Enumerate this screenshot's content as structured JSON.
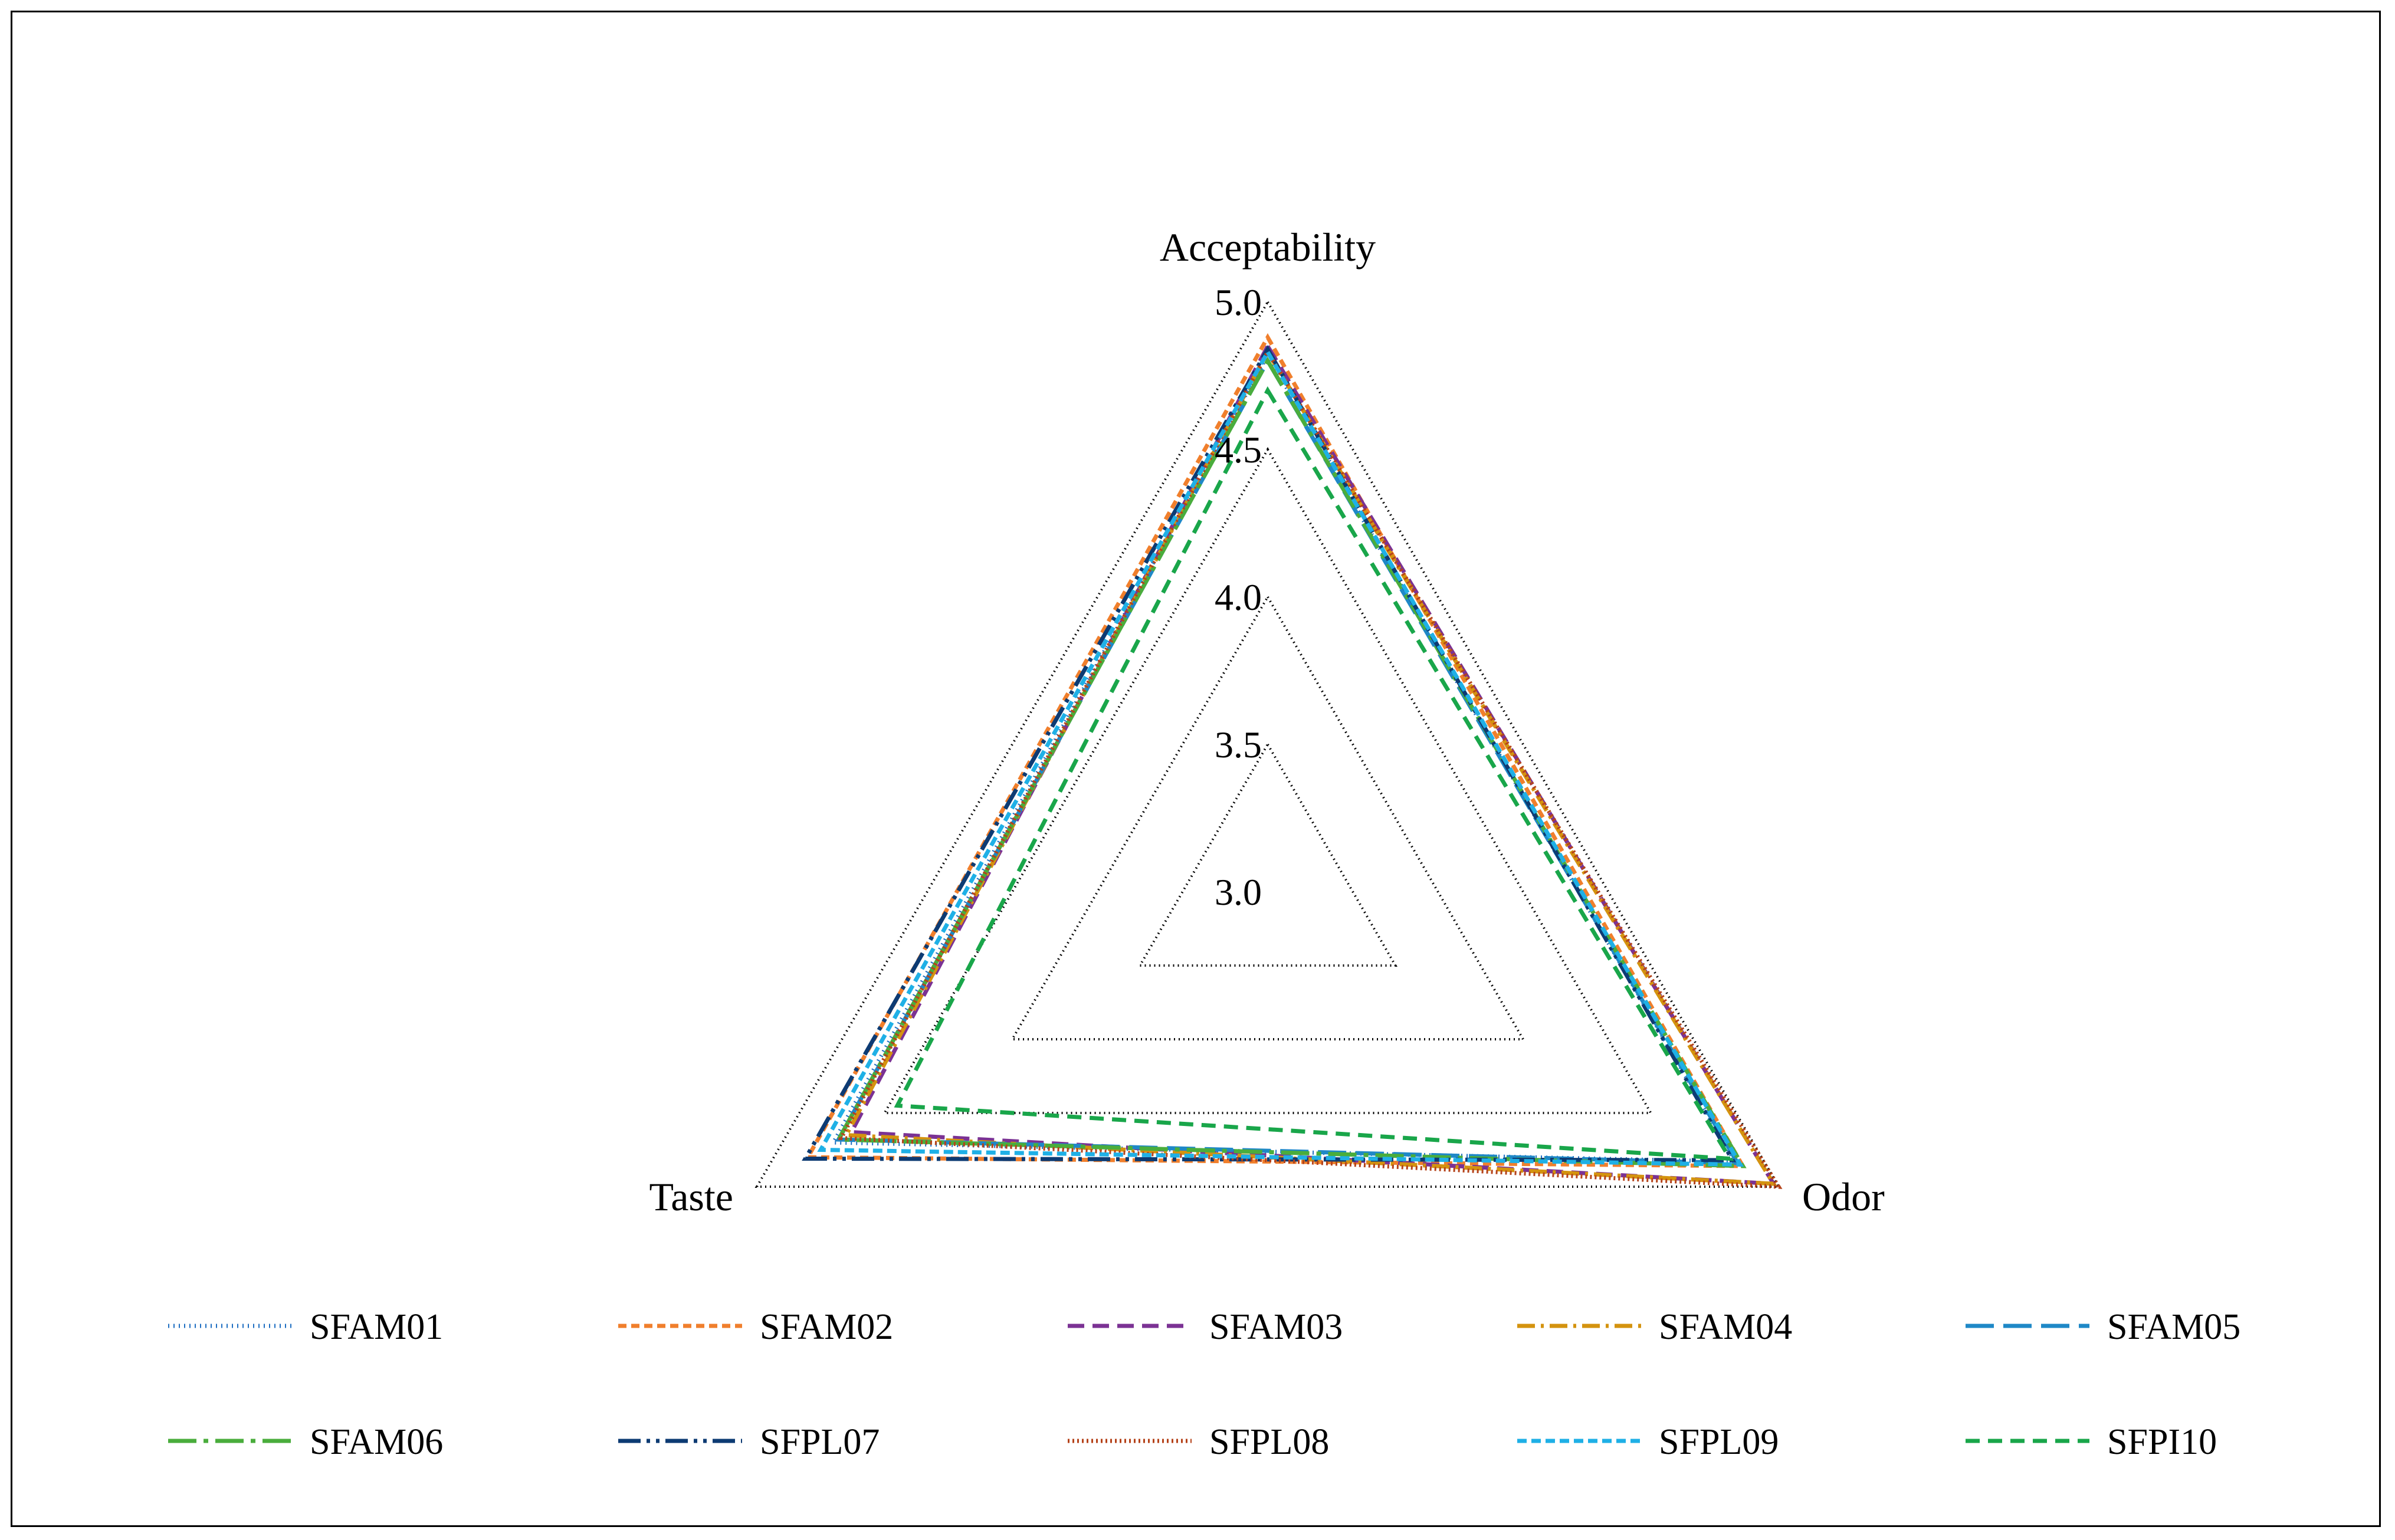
{
  "chart_data": {
    "type": "radar",
    "axes": [
      "Acceptability",
      "Odor",
      "Taste"
    ],
    "rmin": 3.0,
    "rmax": 5.0,
    "ticks": [
      "3.0",
      "3.5",
      "4.0",
      "4.5",
      "5.0"
    ],
    "tick_values": [
      3.0,
      3.5,
      4.0,
      4.5,
      5.0
    ],
    "grid": true,
    "grid_style": "dotted",
    "legend_position": "bottom",
    "series": [
      {
        "name": "SFAM01",
        "values": [
          4.82,
          4.83,
          4.7
        ],
        "color": "#1f6fc2",
        "dash": "2 7"
      },
      {
        "name": "SFAM02",
        "values": [
          4.88,
          4.86,
          4.8
        ],
        "color": "#f07f2c",
        "dash": "14 8"
      },
      {
        "name": "SFAM03",
        "values": [
          4.85,
          4.98,
          4.63
        ],
        "color": "#7b3294",
        "dash": "28 14"
      },
      {
        "name": "SFAM04",
        "values": [
          4.83,
          4.98,
          4.65
        ],
        "color": "#d4930f",
        "dash": "30 10 5 10"
      },
      {
        "name": "SFAM05",
        "values": [
          4.8,
          4.84,
          4.68
        ],
        "color": "#1e88c7",
        "dash": "48 16"
      },
      {
        "name": "SFAM06",
        "values": [
          4.8,
          4.86,
          4.68
        ],
        "color": "#4aad3c",
        "dash": "48 12 8 12"
      },
      {
        "name": "SFPL07",
        "values": [
          4.84,
          4.82,
          4.81
        ],
        "color": "#0d3b73",
        "dash": "38 10 6 10 6 10"
      },
      {
        "name": "SFPL08",
        "values": [
          4.83,
          5.0,
          4.67
        ],
        "color": "#b5431a",
        "dash": "3 5"
      },
      {
        "name": "SFPL09",
        "values": [
          4.83,
          4.85,
          4.75
        ],
        "color": "#1fb0e6",
        "dash": "16 8"
      },
      {
        "name": "SFPI10",
        "values": [
          4.7,
          4.81,
          4.45
        ],
        "color": "#19a64a",
        "dash": "24 14"
      }
    ]
  }
}
